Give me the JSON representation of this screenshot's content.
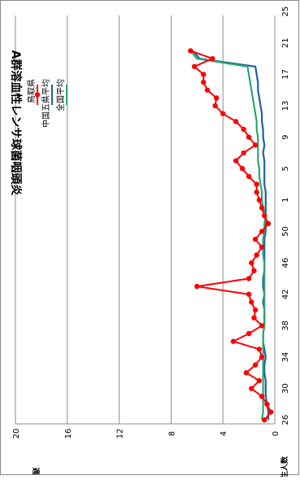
{
  "chart_data": {
    "type": "line",
    "title": "A群溶血性レンサ球菌咽頭炎",
    "xlabel": "週",
    "ylabel": "発生人数",
    "ylim": [
      0,
      20
    ],
    "y_ticks": [
      "0",
      "4",
      "8",
      "12",
      "16",
      "20"
    ],
    "x_ticks": [
      "26",
      "30",
      "34",
      "38",
      "42",
      "46",
      "50",
      "1",
      "5",
      "9",
      "13",
      "17",
      "21",
      "25"
    ],
    "x_ticks_note": "week labels; week numbering wraps after 52",
    "grid": true,
    "legend_position": "right",
    "x": [
      26,
      27,
      28,
      29,
      30,
      31,
      32,
      33,
      34,
      35,
      36,
      37,
      38,
      39,
      40,
      41,
      42,
      43,
      44,
      45,
      46,
      47,
      48,
      49,
      50,
      51,
      52,
      1,
      2,
      3,
      4,
      5,
      6,
      7,
      8,
      9,
      10,
      11,
      12,
      13,
      14,
      15,
      16,
      17,
      18,
      19,
      20,
      21
    ],
    "series": [
      {
        "name": "鳥取県",
        "color": "#ff0000",
        "marker": "circle",
        "values": [
          0.8,
          0.3,
          0.6,
          1.0,
          1.8,
          1.2,
          2.2,
          1.5,
          1.0,
          1.2,
          3.2,
          2.0,
          1.0,
          1.6,
          1.5,
          1.8,
          2.0,
          6.0,
          2.0,
          1.6,
          1.8,
          1.4,
          1.0,
          1.5,
          1.0,
          0.5,
          0.8,
          1.0,
          1.2,
          1.4,
          1.4,
          2.0,
          2.5,
          3.0,
          2.4,
          1.5,
          2.0,
          2.4,
          3.0,
          4.0,
          4.6,
          4.5,
          5.2,
          5.5,
          5.5,
          6.2,
          4.8,
          6.5
        ]
      },
      {
        "name": "中国五県平均",
        "color": "#1f5fa8",
        "values": [
          0.5,
          0.5,
          0.6,
          0.7,
          0.7,
          0.7,
          0.8,
          0.8,
          0.7,
          0.8,
          0.9,
          0.9,
          0.8,
          0.8,
          0.8,
          0.9,
          0.8,
          0.9,
          0.9,
          0.8,
          0.8,
          0.8,
          0.8,
          0.8,
          0.7,
          0.7,
          0.7,
          0.7,
          0.7,
          0.7,
          0.8,
          0.8,
          0.8,
          0.8,
          0.9,
          0.8,
          0.9,
          0.9,
          1.0,
          1.0,
          1.1,
          1.2,
          1.3,
          1.3,
          1.4,
          1.5,
          5.8,
          6.3
        ]
      },
      {
        "name": "全国平均",
        "color": "#2aa86a",
        "values": [
          1.0,
          0.9,
          0.9,
          0.9,
          0.9,
          0.9,
          0.9,
          0.9,
          0.9,
          0.9,
          0.9,
          0.9,
          0.8,
          0.8,
          0.8,
          0.8,
          0.8,
          0.8,
          0.8,
          0.8,
          0.8,
          0.9,
          0.9,
          0.9,
          0.8,
          0.8,
          0.7,
          0.9,
          1.0,
          1.0,
          1.1,
          1.2,
          1.2,
          1.3,
          1.3,
          1.3,
          1.3,
          1.4,
          1.4,
          1.5,
          1.6,
          1.7,
          1.8,
          1.9,
          2.0,
          2.1,
          6.0,
          6.5
        ]
      }
    ]
  }
}
